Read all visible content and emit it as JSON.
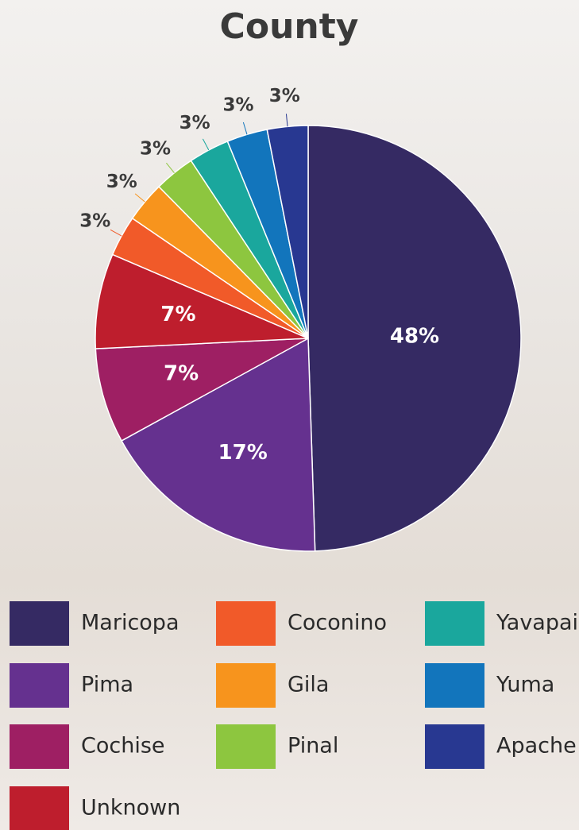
{
  "chart_data": {
    "type": "pie",
    "title": "County",
    "categories": [
      "Maricopa",
      "Pima",
      "Cochise",
      "Unknown",
      "Coconino",
      "Gila",
      "Pinal",
      "Yavapai",
      "Yuma",
      "Apache"
    ],
    "values": [
      48,
      17,
      7,
      7,
      3,
      3,
      3,
      3,
      3,
      3
    ],
    "value_labels": [
      "48%",
      "17%",
      "7%",
      "7%",
      "3%",
      "3%",
      "3%",
      "3%",
      "3%",
      "3%"
    ],
    "colors": [
      "#352a63",
      "#65318f",
      "#9e1f63",
      "#be1e2d",
      "#f15a29",
      "#f7941d",
      "#8dc63f",
      "#1aa79d",
      "#1275bc",
      "#283891"
    ]
  }
}
